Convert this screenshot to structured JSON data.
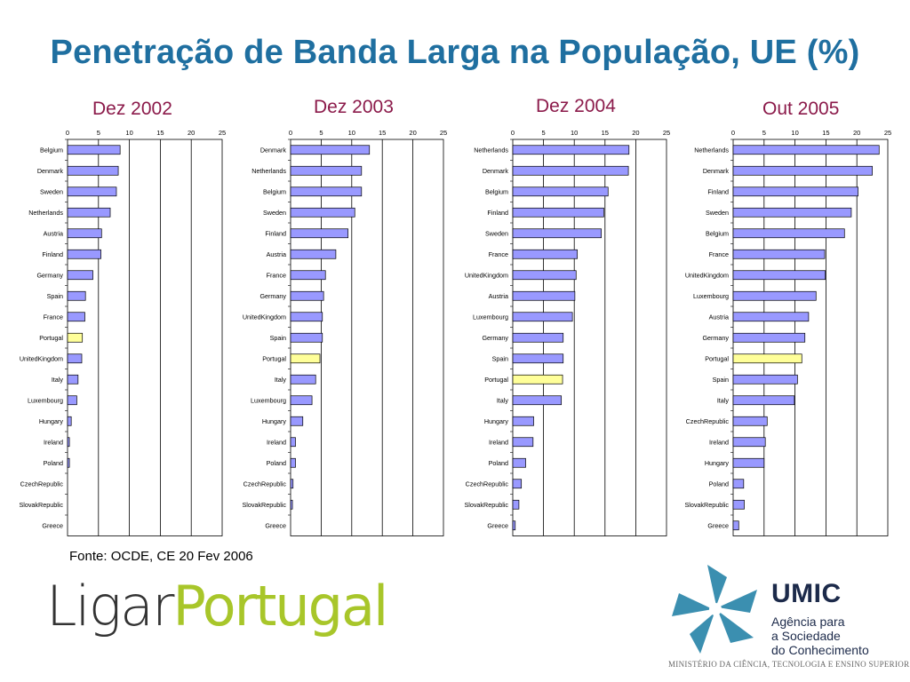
{
  "page": {
    "title": "Penetração de Banda Larga na População, UE (%)",
    "source": "Fonte: OCDE, CE 20 Fev 2006"
  },
  "colors": {
    "title": "#1f6fa0",
    "chart_title": "#8b1a4a",
    "bar": "#9999ff",
    "bar_highlight": "#ffff99",
    "bar_stroke": "#000000",
    "logo_gray": "#333333",
    "logo_green": "#a8c62a",
    "umic_blue": "#3b8fb0"
  },
  "logos": {
    "ligar": "Ligar",
    "portugal": "Portugal",
    "umic_name": "UMIC",
    "umic_line1": "Agência para",
    "umic_line2": "a Sociedade",
    "umic_line3": "do Conhecimento",
    "ministry": "MINISTÉRIO DA CIÊNCIA, TECNOLOGIA E ENSINO SUPERIOR"
  },
  "chart_data": [
    {
      "type": "bar",
      "orientation": "horizontal",
      "title": "Dez 2002",
      "xlim": [
        0,
        25
      ],
      "ticks": [
        "0",
        "5",
        "10",
        "15",
        "20",
        "25"
      ],
      "highlight": "Portugal",
      "categories": [
        "Belgium",
        "Denmark",
        "Sweden",
        "Netherlands",
        "Austria",
        "Finland",
        "Germany",
        "Spain",
        "France",
        "Portugal",
        "UnitedKingdom",
        "Italy",
        "Luxembourg",
        "Hungary",
        "Ireland",
        "Poland",
        "CzechRepublic",
        "SlovakRepublic",
        "Greece"
      ],
      "values": [
        8.5,
        8.2,
        7.9,
        6.9,
        5.5,
        5.4,
        4.1,
        2.9,
        2.8,
        2.4,
        2.3,
        1.7,
        1.5,
        0.6,
        0.3,
        0.3,
        0.0,
        0.0,
        0.0
      ]
    },
    {
      "type": "bar",
      "orientation": "horizontal",
      "title": "Dez 2003",
      "xlim": [
        0,
        25
      ],
      "ticks": [
        "0",
        "5",
        "10",
        "15",
        "20",
        "25"
      ],
      "highlight": "Portugal",
      "categories": [
        "Denmark",
        "Netherlands",
        "Belgium",
        "Sweden",
        "Finland",
        "Austria",
        "France",
        "Germany",
        "UnitedKingdom",
        "Spain",
        "Portugal",
        "Italy",
        "Luxembourg",
        "Hungary",
        "Ireland",
        "Poland",
        "CzechRepublic",
        "SlovakRepublic",
        "Greece"
      ],
      "values": [
        12.9,
        11.6,
        11.6,
        10.5,
        9.4,
        7.4,
        5.7,
        5.4,
        5.2,
        5.2,
        4.8,
        4.1,
        3.5,
        2.0,
        0.8,
        0.8,
        0.4,
        0.3,
        0.0
      ]
    },
    {
      "type": "bar",
      "orientation": "horizontal",
      "title": "Dez 2004",
      "xlim": [
        0,
        25
      ],
      "ticks": [
        "0",
        "5",
        "10",
        "15",
        "20",
        "25"
      ],
      "highlight": "Portugal",
      "categories": [
        "Netherlands",
        "Denmark",
        "Belgium",
        "Finland",
        "Sweden",
        "France",
        "UnitedKingdom",
        "Austria",
        "Luxembourg",
        "Germany",
        "Spain",
        "Portugal",
        "Italy",
        "Hungary",
        "Ireland",
        "Poland",
        "CzechRepublic",
        "SlovakRepublic",
        "Greece"
      ],
      "values": [
        18.9,
        18.8,
        15.5,
        14.8,
        14.4,
        10.5,
        10.3,
        10.1,
        9.7,
        8.2,
        8.2,
        8.1,
        7.9,
        3.4,
        3.3,
        2.1,
        1.4,
        1.0,
        0.4
      ]
    },
    {
      "type": "bar",
      "orientation": "horizontal",
      "title": "Out 2005",
      "xlim": [
        0,
        25
      ],
      "ticks": [
        "0",
        "5",
        "10",
        "15",
        "20",
        "25"
      ],
      "highlight": "Portugal",
      "categories": [
        "Netherlands",
        "Denmark",
        "Finland",
        "Sweden",
        "Belgium",
        "France",
        "UnitedKingdom",
        "Luxembourg",
        "Austria",
        "Germany",
        "Portugal",
        "Spain",
        "Italy",
        "CzechRepublic",
        "Ireland",
        "Hungary",
        "Poland",
        "SlovakRepublic",
        "Greece"
      ],
      "values": [
        23.6,
        22.5,
        20.2,
        19.1,
        18.0,
        14.8,
        14.9,
        13.4,
        12.2,
        11.6,
        11.1,
        10.4,
        9.9,
        5.5,
        5.2,
        5.0,
        1.7,
        1.8,
        0.9
      ]
    }
  ]
}
